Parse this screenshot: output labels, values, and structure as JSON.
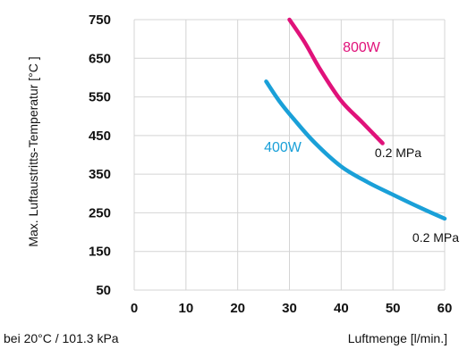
{
  "chart_data": {
    "type": "line",
    "title": "",
    "xlabel": "Luftmenge [l/min.]",
    "ylabel": "Max. Luftaustritts-Temperatur [°C ]",
    "note": "bei 20°C / 101.3 kPa",
    "xlim": [
      0,
      60
    ],
    "ylim": [
      50,
      750
    ],
    "xticks": [
      "0",
      "10",
      "20",
      "30",
      "40",
      "50",
      "60"
    ],
    "yticks": [
      "750",
      "650",
      "550",
      "450",
      "350",
      "250",
      "150",
      "50"
    ],
    "grid": true,
    "series": [
      {
        "name": "800W",
        "color": "#e0127a",
        "end_label": "0.2 MPa",
        "points": [
          [
            30,
            750
          ],
          [
            33,
            690
          ],
          [
            36,
            620
          ],
          [
            40,
            540
          ],
          [
            44,
            485
          ],
          [
            48,
            430
          ]
        ]
      },
      {
        "name": "400W",
        "color": "#1aa0d8",
        "end_label": "0.2 MPa",
        "points": [
          [
            25.5,
            590
          ],
          [
            28,
            540
          ],
          [
            31,
            490
          ],
          [
            35,
            430
          ],
          [
            40,
            370
          ],
          [
            45,
            330
          ],
          [
            50,
            297
          ],
          [
            55,
            265
          ],
          [
            60,
            235
          ]
        ]
      }
    ]
  }
}
